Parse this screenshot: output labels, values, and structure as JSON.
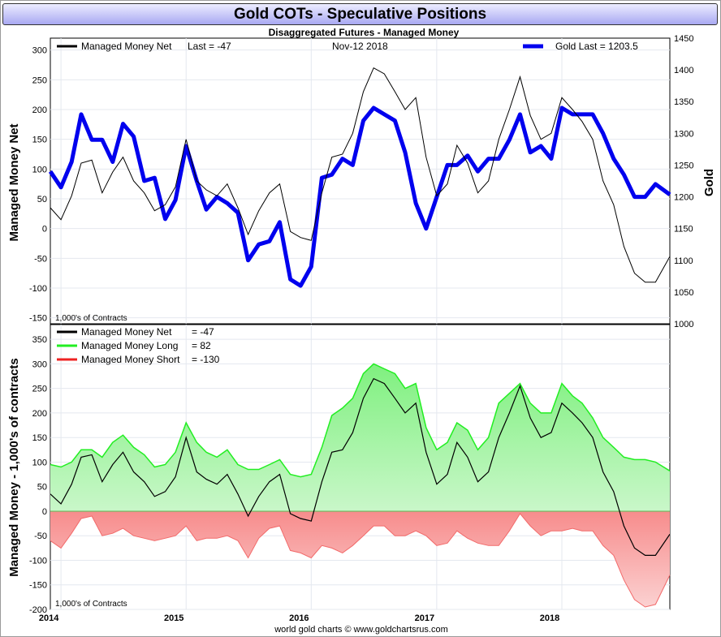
{
  "title": "Gold COTs - Speculative Positions",
  "subtitle": "Disaggregated Futures - Managed Money",
  "footer": "world gold charts © www.goldchartsrus.com",
  "colors": {
    "gold": "#0000ee",
    "net": "#000000",
    "long": "#22ee22",
    "short": "#ee2222"
  },
  "chart_data": [
    {
      "type": "line",
      "legend": {
        "net": "Managed Money Net",
        "net_last_label": "Last = -47",
        "date": "Nov-12  2018",
        "gold": "Gold Last = 1203.5"
      },
      "ylabel": "Managed Money Net",
      "y2label": "Gold",
      "unit_note": "1,000's of Contracts",
      "ylim": [
        -160,
        320
      ],
      "y2lim": [
        1000,
        1450
      ],
      "y_ticks": [
        "300",
        "250",
        "200",
        "150",
        "100",
        "50",
        "0",
        "-50",
        "-100",
        "-150"
      ],
      "y2_ticks": [
        "1450",
        "1400",
        "1350",
        "1300",
        "1250",
        "1200",
        "1150",
        "1100",
        "1050",
        "1000"
      ],
      "x_ticks": [
        "2014",
        "2015",
        "2016",
        "2017",
        "2018"
      ],
      "x_range": [
        "2013-12-01",
        "2018-11-12"
      ],
      "series": [
        {
          "name": "Managed Money Net",
          "axis": "left",
          "x": [
            "2013-12-01",
            "2014-01-01",
            "2014-02-01",
            "2014-03-01",
            "2014-04-01",
            "2014-05-01",
            "2014-06-01",
            "2014-07-01",
            "2014-08-01",
            "2014-09-01",
            "2014-10-01",
            "2014-11-01",
            "2014-12-01",
            "2015-01-01",
            "2015-02-01",
            "2015-03-01",
            "2015-04-01",
            "2015-05-01",
            "2015-06-01",
            "2015-07-01",
            "2015-08-01",
            "2015-09-01",
            "2015-10-01",
            "2015-11-01",
            "2015-12-01",
            "2016-01-01",
            "2016-02-01",
            "2016-03-01",
            "2016-04-01",
            "2016-05-01",
            "2016-06-01",
            "2016-07-01",
            "2016-08-01",
            "2016-09-01",
            "2016-10-01",
            "2016-11-01",
            "2016-12-01",
            "2017-01-01",
            "2017-02-01",
            "2017-03-01",
            "2017-04-01",
            "2017-05-01",
            "2017-06-01",
            "2017-07-01",
            "2017-08-01",
            "2017-09-01",
            "2017-10-01",
            "2017-11-01",
            "2017-12-01",
            "2018-01-01",
            "2018-02-01",
            "2018-03-01",
            "2018-04-01",
            "2018-05-01",
            "2018-06-01",
            "2018-07-01",
            "2018-08-01",
            "2018-09-01",
            "2018-10-01",
            "2018-11-12"
          ],
          "values": [
            35,
            15,
            55,
            110,
            115,
            60,
            95,
            120,
            80,
            60,
            30,
            40,
            70,
            150,
            80,
            65,
            55,
            75,
            35,
            -10,
            30,
            60,
            75,
            -5,
            -15,
            -20,
            60,
            120,
            125,
            160,
            230,
            270,
            260,
            230,
            200,
            220,
            120,
            55,
            75,
            140,
            110,
            60,
            80,
            150,
            200,
            255,
            190,
            150,
            160,
            220,
            200,
            180,
            150,
            80,
            40,
            -30,
            -75,
            -90,
            -90,
            -47
          ]
        },
        {
          "name": "Gold",
          "axis": "right",
          "x": [
            "2013-12-01",
            "2014-01-01",
            "2014-02-01",
            "2014-03-01",
            "2014-04-01",
            "2014-05-01",
            "2014-06-01",
            "2014-07-01",
            "2014-08-01",
            "2014-09-01",
            "2014-10-01",
            "2014-11-01",
            "2014-12-01",
            "2015-01-01",
            "2015-02-01",
            "2015-03-01",
            "2015-04-01",
            "2015-05-01",
            "2015-06-01",
            "2015-07-01",
            "2015-08-01",
            "2015-09-01",
            "2015-10-01",
            "2015-11-01",
            "2015-12-01",
            "2016-01-01",
            "2016-02-01",
            "2016-03-01",
            "2016-04-01",
            "2016-05-01",
            "2016-06-01",
            "2016-07-01",
            "2016-08-01",
            "2016-09-01",
            "2016-10-01",
            "2016-11-01",
            "2016-12-01",
            "2017-01-01",
            "2017-02-01",
            "2017-03-01",
            "2017-04-01",
            "2017-05-01",
            "2017-06-01",
            "2017-07-01",
            "2017-08-01",
            "2017-09-01",
            "2017-10-01",
            "2017-11-01",
            "2017-12-01",
            "2018-01-01",
            "2018-02-01",
            "2018-03-01",
            "2018-04-01",
            "2018-05-01",
            "2018-06-01",
            "2018-07-01",
            "2018-08-01",
            "2018-09-01",
            "2018-10-01",
            "2018-11-12"
          ],
          "values": [
            1240,
            1215,
            1255,
            1330,
            1290,
            1290,
            1255,
            1315,
            1295,
            1225,
            1230,
            1165,
            1195,
            1280,
            1225,
            1180,
            1200,
            1190,
            1175,
            1100,
            1125,
            1130,
            1160,
            1070,
            1060,
            1090,
            1230,
            1235,
            1260,
            1250,
            1320,
            1340,
            1330,
            1320,
            1270,
            1190,
            1150,
            1200,
            1250,
            1250,
            1265,
            1240,
            1260,
            1260,
            1290,
            1330,
            1270,
            1280,
            1260,
            1340,
            1330,
            1330,
            1330,
            1300,
            1260,
            1235,
            1200,
            1200,
            1220,
            1203.5
          ]
        }
      ]
    },
    {
      "type": "area",
      "legend": [
        {
          "name": "Managed Money Net",
          "value": "= -47"
        },
        {
          "name": "Managed Money Long",
          "value": "= 82"
        },
        {
          "name": "Managed Money Short",
          "value": "= -130"
        }
      ],
      "ylabel": "Managed Money - 1,000's of contracts",
      "unit_note": "1,000's of Contracts",
      "ylim": [
        -200,
        380
      ],
      "y_ticks": [
        "350",
        "300",
        "250",
        "200",
        "150",
        "100",
        "50",
        "0",
        "-50",
        "-100",
        "-150",
        "-200"
      ],
      "x_ticks": [
        "2014",
        "2015",
        "2016",
        "2017",
        "2018"
      ],
      "x_range": [
        "2013-12-01",
        "2018-11-12"
      ],
      "series": [
        {
          "name": "Managed Money Long",
          "x": [
            "2013-12-01",
            "2014-01-01",
            "2014-02-01",
            "2014-03-01",
            "2014-04-01",
            "2014-05-01",
            "2014-06-01",
            "2014-07-01",
            "2014-08-01",
            "2014-09-01",
            "2014-10-01",
            "2014-11-01",
            "2014-12-01",
            "2015-01-01",
            "2015-02-01",
            "2015-03-01",
            "2015-04-01",
            "2015-05-01",
            "2015-06-01",
            "2015-07-01",
            "2015-08-01",
            "2015-09-01",
            "2015-10-01",
            "2015-11-01",
            "2015-12-01",
            "2016-01-01",
            "2016-02-01",
            "2016-03-01",
            "2016-04-01",
            "2016-05-01",
            "2016-06-01",
            "2016-07-01",
            "2016-08-01",
            "2016-09-01",
            "2016-10-01",
            "2016-11-01",
            "2016-12-01",
            "2017-01-01",
            "2017-02-01",
            "2017-03-01",
            "2017-04-01",
            "2017-05-01",
            "2017-06-01",
            "2017-07-01",
            "2017-08-01",
            "2017-09-01",
            "2017-10-01",
            "2017-11-01",
            "2017-12-01",
            "2018-01-01",
            "2018-02-01",
            "2018-03-01",
            "2018-04-01",
            "2018-05-01",
            "2018-06-01",
            "2018-07-01",
            "2018-08-01",
            "2018-09-01",
            "2018-10-01",
            "2018-11-12"
          ],
          "values": [
            95,
            90,
            100,
            125,
            125,
            110,
            140,
            155,
            130,
            115,
            90,
            95,
            120,
            180,
            140,
            120,
            110,
            125,
            95,
            85,
            85,
            95,
            105,
            75,
            70,
            75,
            130,
            195,
            210,
            230,
            280,
            300,
            290,
            280,
            250,
            260,
            170,
            125,
            140,
            180,
            165,
            125,
            150,
            220,
            240,
            260,
            220,
            200,
            200,
            260,
            235,
            220,
            190,
            150,
            130,
            110,
            105,
            105,
            100,
            82
          ]
        },
        {
          "name": "Managed Money Short",
          "x": [
            "2013-12-01",
            "2014-01-01",
            "2014-02-01",
            "2014-03-01",
            "2014-04-01",
            "2014-05-01",
            "2014-06-01",
            "2014-07-01",
            "2014-08-01",
            "2014-09-01",
            "2014-10-01",
            "2014-11-01",
            "2014-12-01",
            "2015-01-01",
            "2015-02-01",
            "2015-03-01",
            "2015-04-01",
            "2015-05-01",
            "2015-06-01",
            "2015-07-01",
            "2015-08-01",
            "2015-09-01",
            "2015-10-01",
            "2015-11-01",
            "2015-12-01",
            "2016-01-01",
            "2016-02-01",
            "2016-03-01",
            "2016-04-01",
            "2016-05-01",
            "2016-06-01",
            "2016-07-01",
            "2016-08-01",
            "2016-09-01",
            "2016-10-01",
            "2016-11-01",
            "2016-12-01",
            "2017-01-01",
            "2017-02-01",
            "2017-03-01",
            "2017-04-01",
            "2017-05-01",
            "2017-06-01",
            "2017-07-01",
            "2017-08-01",
            "2017-09-01",
            "2017-10-01",
            "2017-11-01",
            "2017-12-01",
            "2018-01-01",
            "2018-02-01",
            "2018-03-01",
            "2018-04-01",
            "2018-05-01",
            "2018-06-01",
            "2018-07-01",
            "2018-08-01",
            "2018-09-01",
            "2018-10-01",
            "2018-11-12"
          ],
          "values": [
            -60,
            -75,
            -45,
            -15,
            -10,
            -50,
            -45,
            -35,
            -50,
            -55,
            -60,
            -55,
            -50,
            -30,
            -60,
            -55,
            -55,
            -50,
            -60,
            -95,
            -55,
            -35,
            -30,
            -80,
            -85,
            -95,
            -70,
            -75,
            -85,
            -70,
            -50,
            -30,
            -30,
            -50,
            -50,
            -40,
            -50,
            -70,
            -65,
            -40,
            -55,
            -65,
            -70,
            -70,
            -40,
            -5,
            -30,
            -50,
            -40,
            -40,
            -35,
            -40,
            -40,
            -70,
            -90,
            -140,
            -180,
            -195,
            -190,
            -130
          ]
        },
        {
          "name": "Managed Money Net",
          "x": [
            "2013-12-01",
            "2014-01-01",
            "2014-02-01",
            "2014-03-01",
            "2014-04-01",
            "2014-05-01",
            "2014-06-01",
            "2014-07-01",
            "2014-08-01",
            "2014-09-01",
            "2014-10-01",
            "2014-11-01",
            "2014-12-01",
            "2015-01-01",
            "2015-02-01",
            "2015-03-01",
            "2015-04-01",
            "2015-05-01",
            "2015-06-01",
            "2015-07-01",
            "2015-08-01",
            "2015-09-01",
            "2015-10-01",
            "2015-11-01",
            "2015-12-01",
            "2016-01-01",
            "2016-02-01",
            "2016-03-01",
            "2016-04-01",
            "2016-05-01",
            "2016-06-01",
            "2016-07-01",
            "2016-08-01",
            "2016-09-01",
            "2016-10-01",
            "2016-11-01",
            "2016-12-01",
            "2017-01-01",
            "2017-02-01",
            "2017-03-01",
            "2017-04-01",
            "2017-05-01",
            "2017-06-01",
            "2017-07-01",
            "2017-08-01",
            "2017-09-01",
            "2017-10-01",
            "2017-11-01",
            "2017-12-01",
            "2018-01-01",
            "2018-02-01",
            "2018-03-01",
            "2018-04-01",
            "2018-05-01",
            "2018-06-01",
            "2018-07-01",
            "2018-08-01",
            "2018-09-01",
            "2018-10-01",
            "2018-11-12"
          ],
          "values": [
            35,
            15,
            55,
            110,
            115,
            60,
            95,
            120,
            80,
            60,
            30,
            40,
            70,
            150,
            80,
            65,
            55,
            75,
            35,
            -10,
            30,
            60,
            75,
            -5,
            -15,
            -20,
            60,
            120,
            125,
            160,
            230,
            270,
            260,
            230,
            200,
            220,
            120,
            55,
            75,
            140,
            110,
            60,
            80,
            150,
            200,
            255,
            190,
            150,
            160,
            220,
            200,
            180,
            150,
            80,
            40,
            -30,
            -75,
            -90,
            -90,
            -47
          ]
        }
      ]
    }
  ]
}
